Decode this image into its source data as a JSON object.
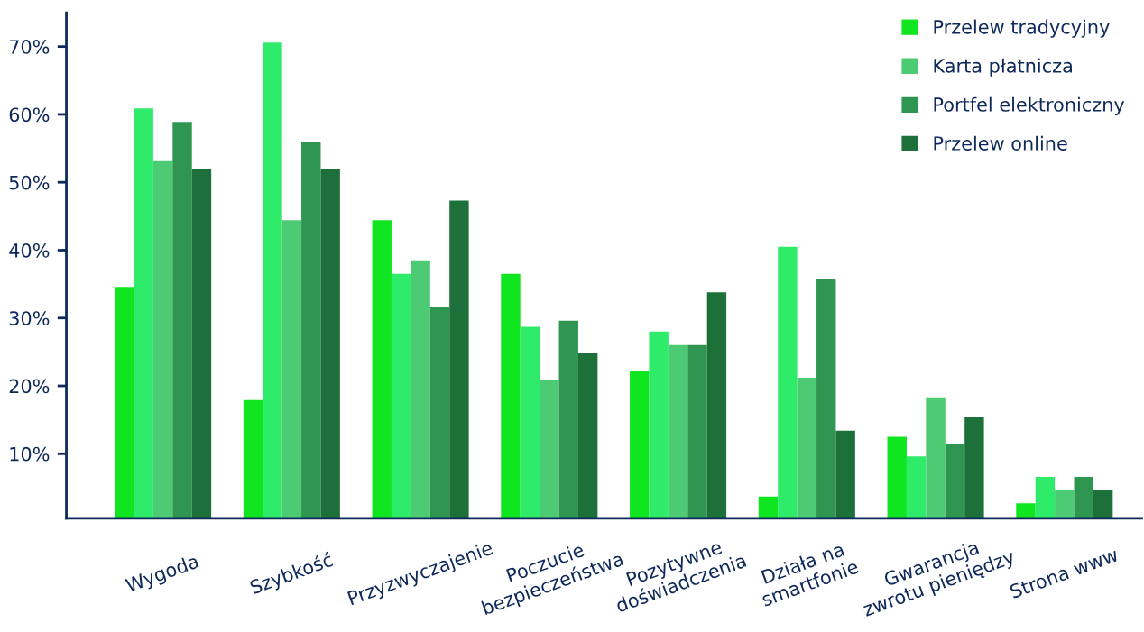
{
  "chart_data": {
    "type": "bar",
    "categories": [
      "Wygoda",
      "Szybkość",
      "Przyzwyczajenie",
      "Poczucie\nbezpieczeństwa",
      "Pozytywne\ndoświadczenia",
      "Działa na\nsmartfonie",
      "Gwarancja\nzwrotu pieniędzy",
      "Strona www"
    ],
    "series": [
      {
        "name": "Przelew tradycyjny",
        "color": "#10e620",
        "values": [
          34.6,
          17.9,
          44.4,
          36.5,
          22.2,
          3.7,
          12.5,
          2.7
        ]
      },
      {
        "color": "#2eeb6a",
        "values": [
          60.9,
          70.6,
          36.5,
          28.7,
          28.0,
          40.5,
          9.6,
          6.6
        ]
      },
      {
        "name": "Karta płatnicza",
        "color": "#4ccb74",
        "values": [
          53.1,
          44.4,
          38.5,
          20.8,
          26.0,
          21.2,
          18.3,
          4.7
        ]
      },
      {
        "name": "Portfel elektroniczny",
        "color": "#2e9650",
        "values": [
          58.9,
          56.0,
          31.6,
          29.6,
          26.0,
          35.7,
          11.5,
          6.6
        ]
      },
      {
        "name": "Przelew online",
        "color": "#1e703a",
        "values": [
          52.0,
          52.0,
          47.3,
          24.8,
          33.8,
          13.4,
          15.4,
          4.7
        ]
      }
    ],
    "ylim": [
      0.5,
      75
    ],
    "yticks": [
      {
        "value": 10,
        "label": "10%"
      },
      {
        "value": 20,
        "label": "20%"
      },
      {
        "value": 30,
        "label": "30%"
      },
      {
        "value": 40,
        "label": "40%"
      },
      {
        "value": 50,
        "label": "50%"
      },
      {
        "value": 60,
        "label": "60%"
      },
      {
        "value": 70,
        "label": "70%"
      }
    ],
    "grid": false,
    "legend": "top right"
  }
}
